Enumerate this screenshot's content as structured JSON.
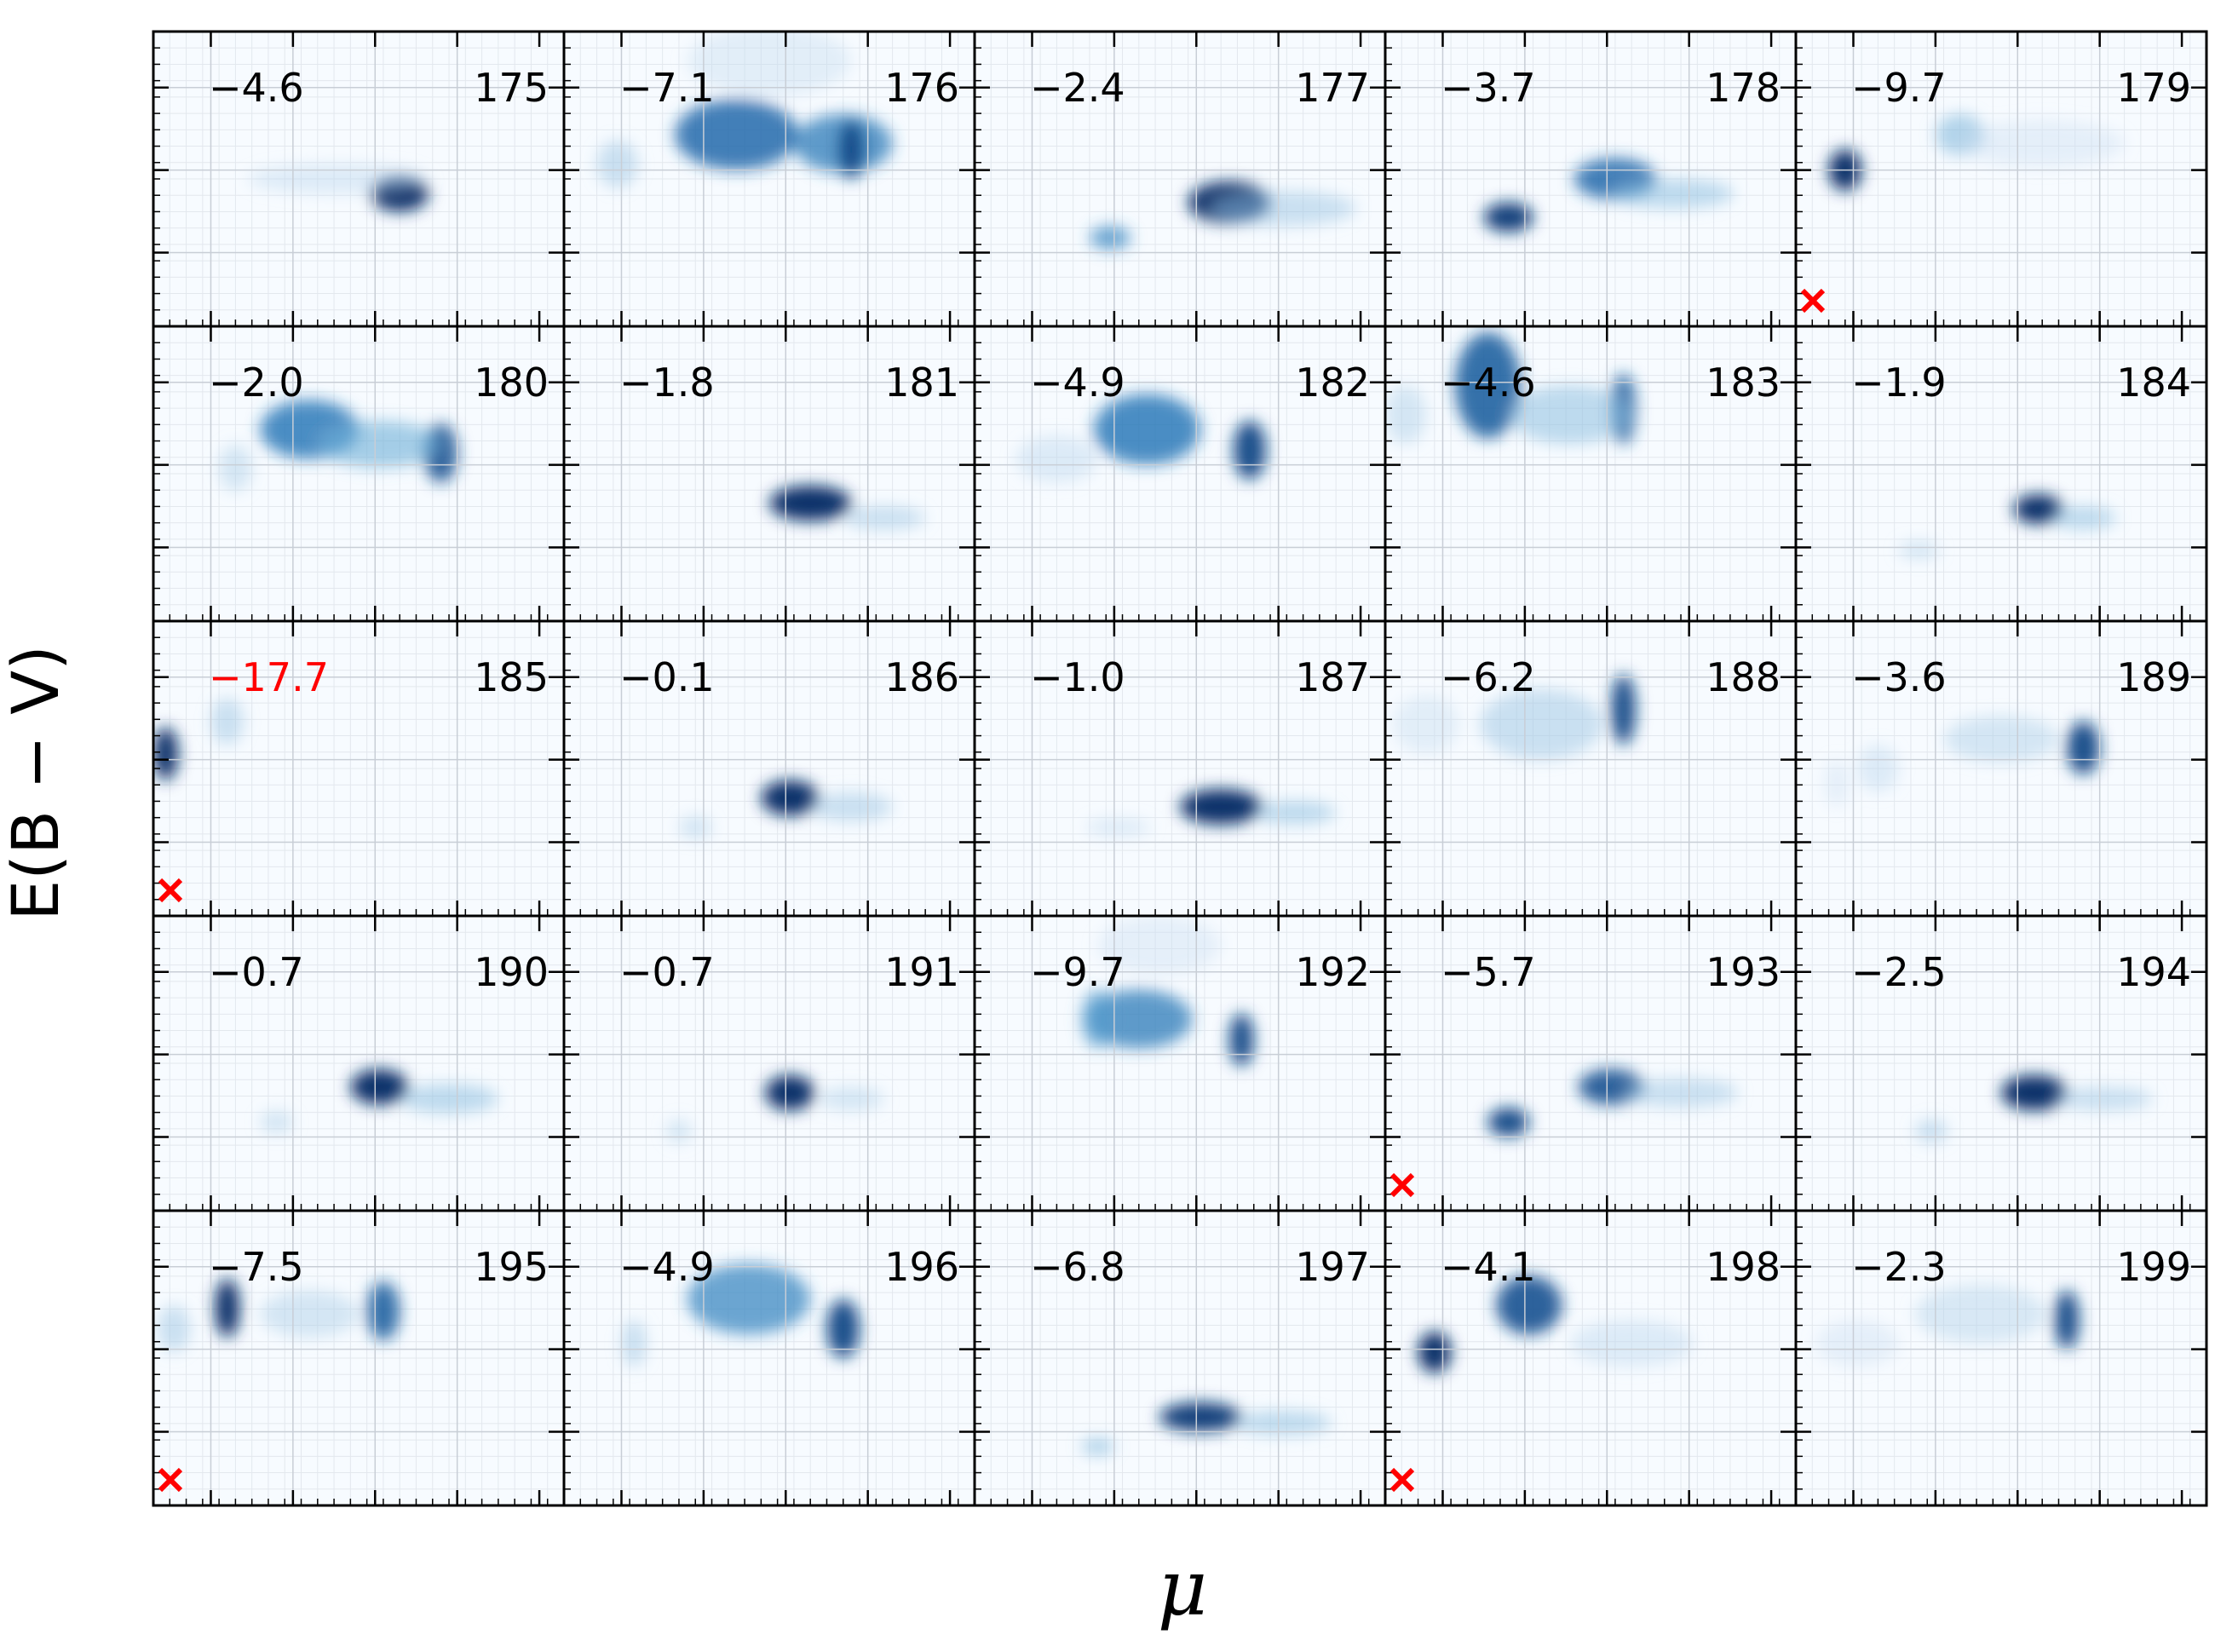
{
  "chart_data": {
    "type": "heatmap",
    "layout": {
      "rows": 5,
      "cols": 5
    },
    "xlabel": "μ",
    "ylabel": "E(B − V)",
    "colormap": "Blues",
    "grid": true,
    "colors": {
      "highlight": "#ff0000",
      "text": "#000000",
      "marker": "#ff0000"
    },
    "panels": [
      {
        "id": "175",
        "score": "−4.6",
        "flag": false,
        "blobs": [
          [
            0.6,
            0.55,
            0.07,
            0.06,
            1.0
          ],
          [
            0.45,
            0.5,
            0.22,
            0.05,
            0.15
          ]
        ]
      },
      {
        "id": "176",
        "score": "−7.1",
        "flag": false,
        "blobs": [
          [
            0.42,
            0.35,
            0.15,
            0.12,
            0.75
          ],
          [
            0.68,
            0.38,
            0.12,
            0.1,
            0.65
          ],
          [
            0.7,
            0.4,
            0.03,
            0.1,
            0.9
          ],
          [
            0.13,
            0.45,
            0.05,
            0.08,
            0.25
          ],
          [
            0.5,
            0.1,
            0.2,
            0.12,
            0.12
          ]
        ]
      },
      {
        "id": "177",
        "score": "−2.4",
        "flag": false,
        "blobs": [
          [
            0.62,
            0.58,
            0.1,
            0.07,
            1.0
          ],
          [
            0.33,
            0.7,
            0.05,
            0.04,
            0.6
          ],
          [
            0.75,
            0.6,
            0.18,
            0.06,
            0.25
          ]
        ]
      },
      {
        "id": "178",
        "score": "−3.7",
        "flag": false,
        "blobs": [
          [
            0.3,
            0.63,
            0.06,
            0.05,
            0.95
          ],
          [
            0.56,
            0.5,
            0.1,
            0.07,
            0.75
          ],
          [
            0.7,
            0.55,
            0.15,
            0.05,
            0.3
          ]
        ]
      },
      {
        "id": "179",
        "score": "−9.7",
        "flag": true,
        "blobs": [
          [
            0.12,
            0.47,
            0.04,
            0.07,
            1.0
          ],
          [
            0.4,
            0.35,
            0.06,
            0.07,
            0.35
          ],
          [
            0.6,
            0.38,
            0.2,
            0.08,
            0.1
          ]
        ]
      },
      {
        "id": "180",
        "score": "−2.0",
        "flag": false,
        "blobs": [
          [
            0.38,
            0.35,
            0.12,
            0.1,
            0.7
          ],
          [
            0.7,
            0.43,
            0.04,
            0.1,
            0.85
          ],
          [
            0.55,
            0.4,
            0.15,
            0.08,
            0.4
          ],
          [
            0.2,
            0.48,
            0.04,
            0.08,
            0.2
          ]
        ]
      },
      {
        "id": "181",
        "score": "−1.8",
        "flag": false,
        "blobs": [
          [
            0.6,
            0.6,
            0.1,
            0.06,
            1.0
          ],
          [
            0.78,
            0.65,
            0.1,
            0.04,
            0.25
          ]
        ]
      },
      {
        "id": "182",
        "score": "−4.9",
        "flag": false,
        "blobs": [
          [
            0.42,
            0.35,
            0.13,
            0.12,
            0.7
          ],
          [
            0.67,
            0.42,
            0.04,
            0.1,
            0.9
          ],
          [
            0.2,
            0.45,
            0.1,
            0.08,
            0.15
          ]
        ]
      },
      {
        "id": "183",
        "score": "−4.6",
        "flag": false,
        "blobs": [
          [
            0.25,
            0.2,
            0.08,
            0.18,
            0.8
          ],
          [
            0.58,
            0.28,
            0.03,
            0.12,
            0.8
          ],
          [
            0.45,
            0.3,
            0.15,
            0.1,
            0.3
          ],
          [
            0.05,
            0.3,
            0.05,
            0.1,
            0.2
          ]
        ]
      },
      {
        "id": "184",
        "score": "−1.9",
        "flag": false,
        "blobs": [
          [
            0.59,
            0.62,
            0.06,
            0.05,
            1.0
          ],
          [
            0.3,
            0.76,
            0.05,
            0.03,
            0.2
          ],
          [
            0.7,
            0.65,
            0.08,
            0.04,
            0.3
          ]
        ]
      },
      {
        "id": "185",
        "score": "−17.7",
        "flag": true,
        "highlight": true,
        "blobs": [
          [
            0.03,
            0.45,
            0.03,
            0.09,
            1.0
          ],
          [
            0.18,
            0.34,
            0.04,
            0.08,
            0.25
          ]
        ]
      },
      {
        "id": "186",
        "score": "−0.1",
        "flag": false,
        "blobs": [
          [
            0.55,
            0.6,
            0.07,
            0.06,
            1.0
          ],
          [
            0.32,
            0.7,
            0.04,
            0.04,
            0.2
          ],
          [
            0.7,
            0.63,
            0.1,
            0.05,
            0.25
          ]
        ]
      },
      {
        "id": "187",
        "score": "−1.0",
        "flag": false,
        "blobs": [
          [
            0.6,
            0.63,
            0.1,
            0.06,
            1.0
          ],
          [
            0.35,
            0.7,
            0.08,
            0.03,
            0.15
          ],
          [
            0.78,
            0.65,
            0.1,
            0.04,
            0.3
          ]
        ]
      },
      {
        "id": "188",
        "score": "−6.2",
        "flag": false,
        "blobs": [
          [
            0.58,
            0.3,
            0.03,
            0.12,
            0.9
          ],
          [
            0.38,
            0.35,
            0.15,
            0.12,
            0.25
          ],
          [
            0.1,
            0.35,
            0.08,
            0.1,
            0.12
          ]
        ]
      },
      {
        "id": "189",
        "score": "−3.6",
        "flag": false,
        "blobs": [
          [
            0.7,
            0.43,
            0.04,
            0.09,
            0.9
          ],
          [
            0.5,
            0.4,
            0.14,
            0.08,
            0.2
          ],
          [
            0.2,
            0.5,
            0.05,
            0.08,
            0.15
          ],
          [
            0.1,
            0.55,
            0.03,
            0.08,
            0.1
          ]
        ]
      },
      {
        "id": "190",
        "score": "−0.7",
        "flag": false,
        "blobs": [
          [
            0.55,
            0.58,
            0.07,
            0.06,
            1.0
          ],
          [
            0.3,
            0.7,
            0.04,
            0.04,
            0.2
          ],
          [
            0.72,
            0.62,
            0.12,
            0.05,
            0.3
          ]
        ]
      },
      {
        "id": "191",
        "score": "−0.7",
        "flag": false,
        "blobs": [
          [
            0.55,
            0.6,
            0.06,
            0.06,
            1.0
          ],
          [
            0.28,
            0.73,
            0.03,
            0.04,
            0.2
          ],
          [
            0.7,
            0.62,
            0.08,
            0.04,
            0.2
          ]
        ]
      },
      {
        "id": "192",
        "score": "−9.7",
        "flag": false,
        "blobs": [
          [
            0.4,
            0.35,
            0.13,
            0.1,
            0.65
          ],
          [
            0.65,
            0.42,
            0.03,
            0.09,
            0.9
          ],
          [
            0.3,
            0.35,
            0.04,
            0.1,
            0.5
          ],
          [
            0.45,
            0.1,
            0.15,
            0.1,
            0.1
          ]
        ]
      },
      {
        "id": "193",
        "score": "−5.7",
        "flag": true,
        "blobs": [
          [
            0.3,
            0.7,
            0.05,
            0.05,
            0.9
          ],
          [
            0.55,
            0.58,
            0.08,
            0.06,
            0.85
          ],
          [
            0.72,
            0.6,
            0.14,
            0.05,
            0.25
          ]
        ]
      },
      {
        "id": "194",
        "score": "−2.5",
        "flag": false,
        "blobs": [
          [
            0.58,
            0.6,
            0.08,
            0.06,
            1.0
          ],
          [
            0.33,
            0.73,
            0.04,
            0.04,
            0.25
          ],
          [
            0.75,
            0.62,
            0.12,
            0.04,
            0.25
          ]
        ]
      },
      {
        "id": "195",
        "score": "−7.5",
        "flag": true,
        "blobs": [
          [
            0.18,
            0.33,
            0.03,
            0.1,
            1.0
          ],
          [
            0.56,
            0.34,
            0.04,
            0.1,
            0.8
          ],
          [
            0.38,
            0.35,
            0.12,
            0.08,
            0.2
          ],
          [
            0.05,
            0.4,
            0.04,
            0.08,
            0.25
          ]
        ]
      },
      {
        "id": "196",
        "score": "−4.9",
        "flag": false,
        "blobs": [
          [
            0.45,
            0.3,
            0.15,
            0.12,
            0.6
          ],
          [
            0.68,
            0.4,
            0.04,
            0.1,
            0.9
          ],
          [
            0.17,
            0.45,
            0.03,
            0.08,
            0.25
          ]
        ]
      },
      {
        "id": "197",
        "score": "−6.8",
        "flag": false,
        "blobs": [
          [
            0.55,
            0.7,
            0.1,
            0.05,
            0.95
          ],
          [
            0.3,
            0.8,
            0.04,
            0.03,
            0.35
          ],
          [
            0.75,
            0.72,
            0.12,
            0.04,
            0.3
          ]
        ]
      },
      {
        "id": "198",
        "score": "−4.1",
        "flag": true,
        "blobs": [
          [
            0.12,
            0.48,
            0.04,
            0.07,
            1.0
          ],
          [
            0.35,
            0.32,
            0.08,
            0.1,
            0.85
          ],
          [
            0.6,
            0.45,
            0.15,
            0.08,
            0.15
          ]
        ]
      },
      {
        "id": "199",
        "score": "−2.3",
        "flag": false,
        "blobs": [
          [
            0.66,
            0.37,
            0.03,
            0.1,
            0.9
          ],
          [
            0.45,
            0.35,
            0.16,
            0.1,
            0.18
          ],
          [
            0.15,
            0.45,
            0.1,
            0.08,
            0.1
          ]
        ]
      }
    ]
  }
}
